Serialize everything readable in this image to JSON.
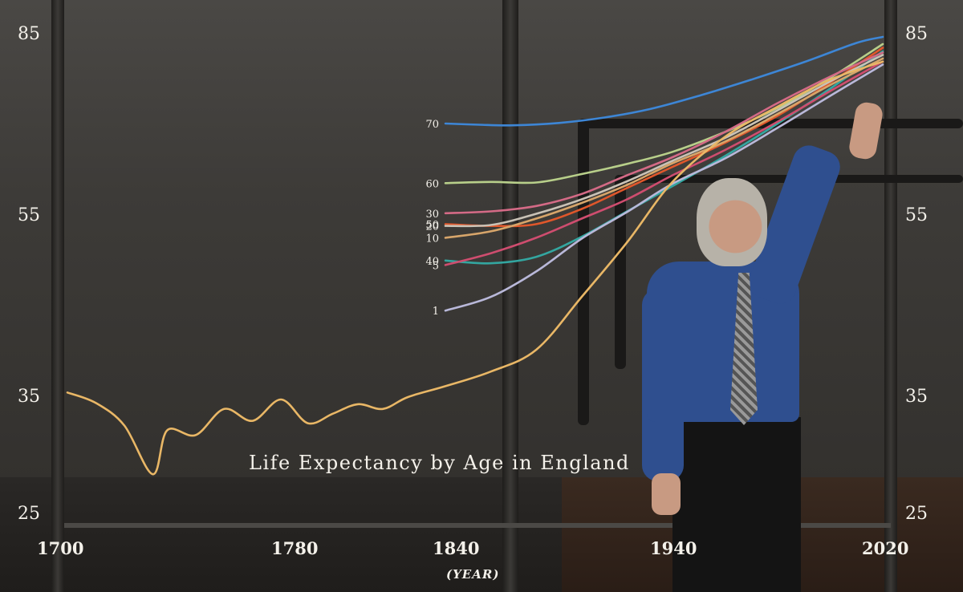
{
  "chart_data": {
    "type": "line",
    "title": "Life Expectancy by Age in England",
    "xlabel": "(YEAR)",
    "ylabel": "",
    "xlim": [
      1700,
      2020
    ],
    "ylim": [
      25,
      85
    ],
    "x_ticks": [
      "1700",
      "1780",
      "1840",
      "1940",
      "2020"
    ],
    "y_ticks": [
      "85",
      "55",
      "35",
      "25"
    ],
    "series": [
      {
        "name": "70",
        "color": "#3d86d6",
        "points": [
          [
            1840,
            70.2
          ],
          [
            1855,
            70.0
          ],
          [
            1870,
            69.9
          ],
          [
            1890,
            70.3
          ],
          [
            1910,
            71.2
          ],
          [
            1930,
            72.6
          ],
          [
            1950,
            74.8
          ],
          [
            1970,
            77.5
          ],
          [
            1990,
            80.4
          ],
          [
            2010,
            83.6
          ],
          [
            2020,
            84.6
          ]
        ]
      },
      {
        "name": "60",
        "color": "#b8cf8a",
        "points": [
          [
            1840,
            60.3
          ],
          [
            1860,
            60.5
          ],
          [
            1880,
            60.4
          ],
          [
            1900,
            61.8
          ],
          [
            1920,
            63.5
          ],
          [
            1940,
            65.5
          ],
          [
            1960,
            68.8
          ],
          [
            1980,
            72.8
          ],
          [
            2000,
            77.8
          ],
          [
            2020,
            83.4
          ]
        ]
      },
      {
        "name": "50",
        "color": "#e0572b",
        "points": [
          [
            1840,
            54.0
          ],
          [
            1860,
            53.8
          ],
          [
            1880,
            54.0
          ],
          [
            1900,
            56.0
          ],
          [
            1920,
            59.5
          ],
          [
            1940,
            63.0
          ],
          [
            1960,
            67.0
          ],
          [
            1980,
            71.5
          ],
          [
            2000,
            77.0
          ],
          [
            2020,
            82.8
          ]
        ]
      },
      {
        "name": "40",
        "color": "#33a6a0",
        "points": [
          [
            1840,
            50.0
          ],
          [
            1860,
            49.7
          ],
          [
            1880,
            50.4
          ],
          [
            1900,
            52.6
          ],
          [
            1920,
            55.6
          ],
          [
            1940,
            59.8
          ],
          [
            1960,
            64.8
          ],
          [
            1980,
            70.2
          ],
          [
            2000,
            76.0
          ],
          [
            2020,
            82.2
          ]
        ]
      },
      {
        "name": "30",
        "color": "#d46a86",
        "points": [
          [
            1840,
            55.3
          ],
          [
            1860,
            55.6
          ],
          [
            1880,
            56.5
          ],
          [
            1900,
            58.5
          ],
          [
            1920,
            61.6
          ],
          [
            1940,
            64.6
          ],
          [
            1960,
            68.8
          ],
          [
            1980,
            73.6
          ],
          [
            2000,
            78.0
          ],
          [
            2020,
            82.0
          ]
        ]
      },
      {
        "name": "20",
        "color": "#c9c2b6",
        "points": [
          [
            1840,
            53.8
          ],
          [
            1860,
            53.9
          ],
          [
            1880,
            55.2
          ],
          [
            1900,
            57.6
          ],
          [
            1920,
            60.6
          ],
          [
            1940,
            64.0
          ],
          [
            1960,
            67.8
          ],
          [
            1980,
            72.4
          ],
          [
            2000,
            77.2
          ],
          [
            2020,
            81.6
          ]
        ]
      },
      {
        "name": "10",
        "color": "#d7a56a",
        "points": [
          [
            1840,
            52.5
          ],
          [
            1860,
            53.2
          ],
          [
            1880,
            54.6
          ],
          [
            1900,
            57.0
          ],
          [
            1920,
            60.0
          ],
          [
            1940,
            63.6
          ],
          [
            1960,
            67.2
          ],
          [
            1980,
            71.8
          ],
          [
            2000,
            76.6
          ],
          [
            2020,
            81.0
          ]
        ]
      },
      {
        "name": "5",
        "color": "#cf4d6f",
        "points": [
          [
            1840,
            49.5
          ],
          [
            1860,
            50.8
          ],
          [
            1880,
            52.5
          ],
          [
            1900,
            54.6
          ],
          [
            1920,
            57.6
          ],
          [
            1940,
            61.6
          ],
          [
            1960,
            65.8
          ],
          [
            1980,
            70.5
          ],
          [
            2000,
            75.6
          ],
          [
            2020,
            80.5
          ]
        ]
      },
      {
        "name": "1",
        "color": "#b9b8d9",
        "points": [
          [
            1840,
            44.5
          ],
          [
            1860,
            46.0
          ],
          [
            1880,
            48.8
          ],
          [
            1900,
            52.4
          ],
          [
            1920,
            55.5
          ],
          [
            1940,
            60.2
          ],
          [
            1960,
            64.4
          ],
          [
            1980,
            69.5
          ],
          [
            2000,
            74.8
          ],
          [
            2020,
            80.0
          ]
        ]
      },
      {
        "name": "",
        "color": "#e9b766",
        "points": [
          [
            1700,
            35.5
          ],
          [
            1710,
            34.5
          ],
          [
            1720,
            32.6
          ],
          [
            1730,
            28.5
          ],
          [
            1735,
            32.2
          ],
          [
            1745,
            31.8
          ],
          [
            1755,
            34.0
          ],
          [
            1765,
            33.0
          ],
          [
            1775,
            34.8
          ],
          [
            1785,
            32.8
          ],
          [
            1795,
            33.6
          ],
          [
            1805,
            34.4
          ],
          [
            1815,
            34.0
          ],
          [
            1825,
            35.0
          ],
          [
            1840,
            36.2
          ],
          [
            1860,
            37.8
          ],
          [
            1880,
            40.2
          ],
          [
            1900,
            46.0
          ],
          [
            1920,
            52.0
          ],
          [
            1940,
            60.5
          ],
          [
            1960,
            68.0
          ],
          [
            1980,
            73.0
          ],
          [
            2000,
            77.5
          ],
          [
            2020,
            80.5
          ]
        ]
      }
    ]
  }
}
